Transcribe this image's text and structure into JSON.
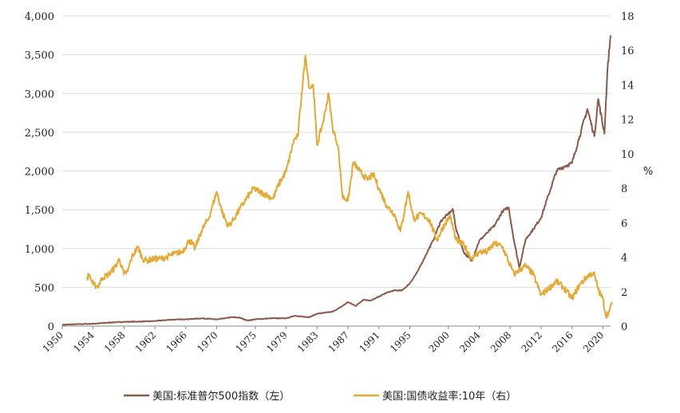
{
  "chart_data": {
    "type": "line",
    "title": "",
    "y_left": {
      "range": [
        0,
        4000
      ],
      "ticks": [
        "0",
        "500",
        "1,000",
        "1,500",
        "2,000",
        "2,500",
        "3,000",
        "3,500",
        "4,000"
      ],
      "tick_values": [
        0,
        500,
        1000,
        1500,
        2000,
        2500,
        3000,
        3500,
        4000
      ]
    },
    "y_right": {
      "range": [
        0,
        18
      ],
      "label": "%",
      "ticks": [
        "0",
        "2",
        "4",
        "6",
        "8",
        "10",
        "12",
        "14",
        "16",
        "18"
      ],
      "tick_values": [
        0,
        2,
        4,
        6,
        8,
        10,
        12,
        14,
        16,
        18
      ]
    },
    "x": {
      "range": [
        1950,
        2021
      ],
      "ticks": [
        "1950",
        "1954",
        "1958",
        "1962",
        "1966",
        "1970",
        "1975",
        "1979",
        "1983",
        "1987",
        "1991",
        "1995",
        "2000",
        "2004",
        "2008",
        "2012",
        "2016",
        "2020"
      ],
      "tick_values": [
        1950,
        1954,
        1958,
        1962,
        1966,
        1970,
        1975,
        1979,
        1983,
        1987,
        1991,
        1995,
        2000,
        2004,
        2008,
        2012,
        2016,
        2020
      ]
    },
    "grid": "horizontal",
    "legend_position": "bottom",
    "series": [
      {
        "name": "美国:标准普尔500指数（左）",
        "color": "#8b5a4a",
        "axis": "left",
        "points": [
          [
            1950,
            17
          ],
          [
            1952,
            25
          ],
          [
            1954,
            30
          ],
          [
            1956,
            45
          ],
          [
            1958,
            55
          ],
          [
            1960,
            58
          ],
          [
            1962,
            65
          ],
          [
            1964,
            82
          ],
          [
            1966,
            88
          ],
          [
            1968,
            100
          ],
          [
            1969,
            95
          ],
          [
            1970,
            85
          ],
          [
            1972,
            115
          ],
          [
            1973,
            108
          ],
          [
            1974,
            72
          ],
          [
            1975,
            88
          ],
          [
            1977,
            100
          ],
          [
            1979,
            102
          ],
          [
            1980,
            130
          ],
          [
            1981,
            125
          ],
          [
            1982,
            115
          ],
          [
            1983,
            160
          ],
          [
            1985,
            185
          ],
          [
            1986,
            240
          ],
          [
            1987,
            310
          ],
          [
            1988,
            260
          ],
          [
            1989,
            340
          ],
          [
            1990,
            330
          ],
          [
            1991,
            380
          ],
          [
            1992,
            430
          ],
          [
            1993,
            460
          ],
          [
            1994,
            460
          ],
          [
            1995,
            550
          ],
          [
            1996,
            700
          ],
          [
            1997,
            900
          ],
          [
            1998,
            1100
          ],
          [
            1999,
            1350
          ],
          [
            2000,
            1450
          ],
          [
            2000.6,
            1500
          ],
          [
            2001,
            1250
          ],
          [
            2002,
            950
          ],
          [
            2003,
            840
          ],
          [
            2004,
            1100
          ],
          [
            2005,
            1200
          ],
          [
            2006,
            1300
          ],
          [
            2007,
            1480
          ],
          [
            2007.8,
            1530
          ],
          [
            2008.5,
            1100
          ],
          [
            2009.2,
            750
          ],
          [
            2010,
            1120
          ],
          [
            2011,
            1250
          ],
          [
            2012,
            1400
          ],
          [
            2013,
            1700
          ],
          [
            2014,
            2000
          ],
          [
            2015,
            2060
          ],
          [
            2016,
            2100
          ],
          [
            2017,
            2450
          ],
          [
            2018,
            2800
          ],
          [
            2018.9,
            2450
          ],
          [
            2019.4,
            2930
          ],
          [
            2020.2,
            2480
          ],
          [
            2020.6,
            3300
          ],
          [
            2021,
            3750
          ]
        ]
      },
      {
        "name": "美国:国债收益率:10年（右）",
        "color": "#e5a830",
        "axis": "right",
        "points": [
          [
            1953.2,
            2.8
          ],
          [
            1953.5,
            3.0
          ],
          [
            1954,
            2.4
          ],
          [
            1954.6,
            2.3
          ],
          [
            1955.2,
            2.8
          ],
          [
            1956,
            3.0
          ],
          [
            1956.8,
            3.4
          ],
          [
            1957.4,
            3.9
          ],
          [
            1958,
            3.0
          ],
          [
            1958.5,
            3.2
          ],
          [
            1959,
            4.0
          ],
          [
            1959.8,
            4.6
          ],
          [
            1960.4,
            3.9
          ],
          [
            1961,
            3.8
          ],
          [
            1961.8,
            3.9
          ],
          [
            1962.5,
            3.9
          ],
          [
            1963.5,
            4.0
          ],
          [
            1964.5,
            4.2
          ],
          [
            1965.5,
            4.3
          ],
          [
            1966.5,
            5.0
          ],
          [
            1967.2,
            4.5
          ],
          [
            1968,
            5.5
          ],
          [
            1969,
            6.3
          ],
          [
            1970,
            7.8
          ],
          [
            1970.8,
            6.5
          ],
          [
            1971.5,
            5.8
          ],
          [
            1972.2,
            6.2
          ],
          [
            1973,
            6.8
          ],
          [
            1974,
            7.5
          ],
          [
            1974.8,
            8.0
          ],
          [
            1975.5,
            7.8
          ],
          [
            1976.5,
            7.6
          ],
          [
            1977.3,
            7.4
          ],
          [
            1978,
            8.2
          ],
          [
            1979,
            9.0
          ],
          [
            1980,
            10.8
          ],
          [
            1980.5,
            11.0
          ],
          [
            1981,
            13.5
          ],
          [
            1981.5,
            15.7
          ],
          [
            1982,
            13.8
          ],
          [
            1982.5,
            14.0
          ],
          [
            1983,
            10.5
          ],
          [
            1983.8,
            11.9
          ],
          [
            1984.5,
            13.5
          ],
          [
            1985,
            11.5
          ],
          [
            1985.7,
            10.5
          ],
          [
            1986.3,
            7.5
          ],
          [
            1987,
            7.3
          ],
          [
            1987.7,
            9.5
          ],
          [
            1988.5,
            9.0
          ],
          [
            1989.5,
            8.5
          ],
          [
            1990.3,
            8.8
          ],
          [
            1991,
            8.0
          ],
          [
            1992,
            7.0
          ],
          [
            1993,
            6.5
          ],
          [
            1993.8,
            5.5
          ],
          [
            1994.8,
            7.8
          ],
          [
            1995.5,
            6.2
          ],
          [
            1996.5,
            6.5
          ],
          [
            1997.5,
            6.2
          ],
          [
            1998.5,
            5.0
          ],
          [
            1999.5,
            5.9
          ],
          [
            2000.2,
            6.4
          ],
          [
            2001,
            5.0
          ],
          [
            2002,
            4.7
          ],
          [
            2003,
            3.9
          ],
          [
            2004,
            4.3
          ],
          [
            2005,
            4.3
          ],
          [
            2006,
            4.8
          ],
          [
            2007,
            4.6
          ],
          [
            2008.5,
            3.0
          ],
          [
            2009,
            3.2
          ],
          [
            2010,
            3.5
          ],
          [
            2011,
            3.0
          ],
          [
            2012,
            1.8
          ],
          [
            2013,
            2.2
          ],
          [
            2014,
            2.6
          ],
          [
            2015,
            2.2
          ],
          [
            2016,
            1.6
          ],
          [
            2017,
            2.4
          ],
          [
            2018,
            2.9
          ],
          [
            2018.8,
            3.1
          ],
          [
            2019.5,
            2.0
          ],
          [
            2020,
            1.6
          ],
          [
            2020.4,
            0.6
          ],
          [
            2020.9,
            0.9
          ],
          [
            2021.2,
            1.4
          ]
        ]
      }
    ]
  },
  "legend": {
    "items": [
      {
        "label": "美国:标准普尔500指数（左）",
        "color": "#8b5a4a"
      },
      {
        "label": "美国:国债收益率:10年（右）",
        "color": "#e5a830"
      }
    ]
  }
}
